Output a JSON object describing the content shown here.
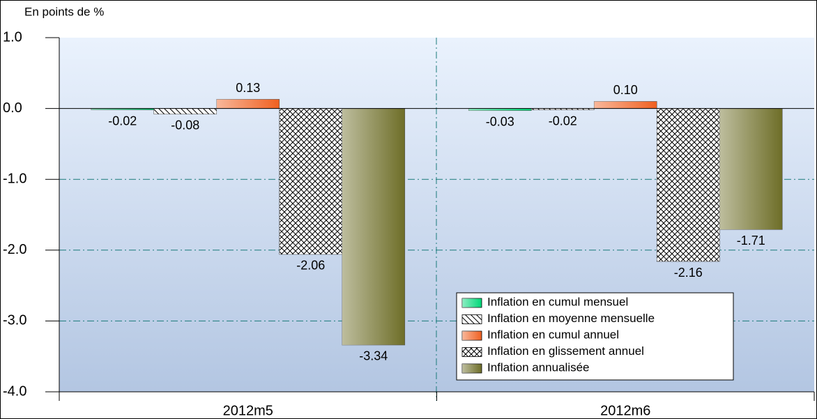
{
  "chart_data": {
    "type": "bar",
    "y_label": "En points de %",
    "categories": [
      "2012m5",
      "2012m6"
    ],
    "series": [
      {
        "name": "Inflation en cumul mensuel",
        "color": "#00d878",
        "fill_style": "gradient",
        "values": [
          -0.02,
          -0.03
        ]
      },
      {
        "name": "Inflation en moyenne mensuelle",
        "color": "#000000",
        "fill_style": "hatch",
        "values": [
          -0.08,
          -0.02
        ]
      },
      {
        "name": "Inflation en cumul annuel",
        "color": "#f06020",
        "fill_style": "gradient",
        "values": [
          0.13,
          0.1
        ],
        "value_labels": [
          "0.13",
          "0.10"
        ]
      },
      {
        "name": "Inflation en glissement annuel",
        "color": "#000000",
        "fill_style": "crosshatch",
        "values": [
          -2.06,
          -2.16
        ]
      },
      {
        "name": "Inflation annualisée",
        "color": "#6e6e28",
        "fill_style": "gradient",
        "values": [
          -3.34,
          -1.71
        ]
      }
    ],
    "ylim": [
      -4.0,
      1.0
    ],
    "yticks": [
      {
        "value": 1.0,
        "label": "1.0"
      },
      {
        "value": 0.0,
        "label": "0.0"
      },
      {
        "value": -1.0,
        "label": "-1.0"
      },
      {
        "value": -2.0,
        "label": "-2.0"
      },
      {
        "value": -3.0,
        "label": "-3.0"
      },
      {
        "value": -4.0,
        "label": "-4.0"
      }
    ],
    "grid": true,
    "legend": "lower-right"
  }
}
